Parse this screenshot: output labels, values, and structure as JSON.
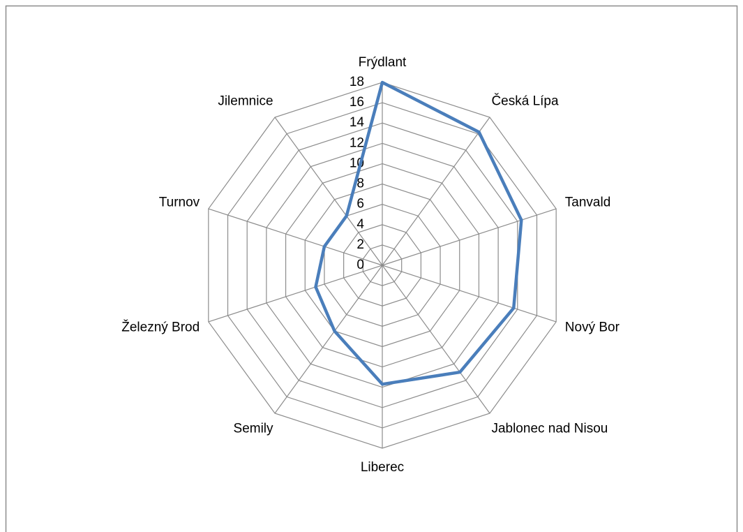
{
  "chart_data": {
    "type": "radar",
    "categories": [
      "Frýdlant",
      "Česká Lípa",
      "Tanvald",
      "Nový Bor",
      "Jablonec nad Nisou",
      "Liberec",
      "Semily",
      "Železný Brod",
      "Turnov",
      "Jilemnice"
    ],
    "series": [
      {
        "color": "#4a7ebb",
        "values": [
          18,
          16.2,
          14.4,
          13.6,
          13,
          11.7,
          8,
          6.9,
          6,
          6
        ]
      }
    ],
    "ylim": [
      0,
      18
    ],
    "yticks": [
      0,
      2,
      4,
      6,
      8,
      10,
      12,
      14,
      16,
      18
    ],
    "grid": true
  }
}
